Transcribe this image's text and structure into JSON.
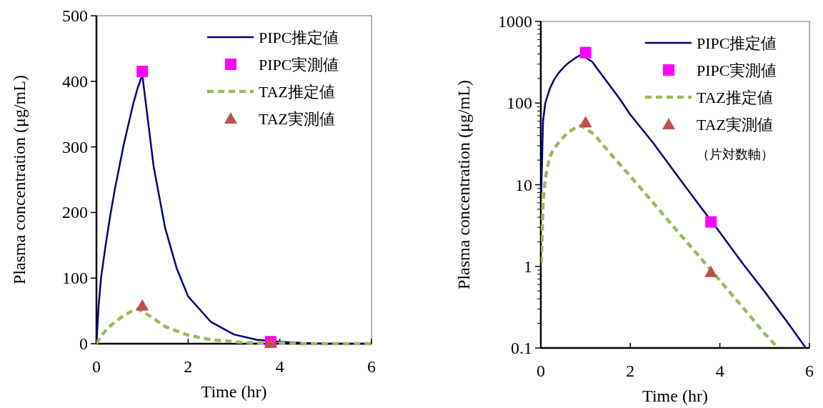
{
  "chart_data": [
    {
      "type": "line",
      "xlabel": "Time (hr)",
      "ylabel": "Plasma concentration (μg/mL)",
      "xlim": [
        0,
        6
      ],
      "ylim": [
        0,
        500
      ],
      "xticks": [
        0,
        2,
        4,
        6
      ],
      "yticks": [
        0,
        100,
        200,
        300,
        400,
        500
      ],
      "legend": "top right",
      "grid": false,
      "series": [
        {
          "name": "PIPC推定値",
          "type": "line",
          "color": "#000080",
          "line_style": "solid",
          "marker": "none",
          "x": [
            0,
            0.05,
            0.1,
            0.2,
            0.3,
            0.4,
            0.5,
            0.6,
            0.7,
            0.8,
            0.9,
            1.0,
            1.25,
            1.5,
            1.75,
            2,
            2.5,
            3,
            3.5,
            4,
            4.5,
            5,
            5.5,
            6
          ],
          "values": [
            0,
            60,
            100,
            150,
            195,
            235,
            270,
            305,
            335,
            365,
            390,
            410,
            269,
            176,
            115,
            72,
            33,
            14,
            6,
            3,
            1,
            0,
            0,
            0
          ]
        },
        {
          "name": "PIPC実測値",
          "type": "scatter",
          "color": "#ff00ff",
          "marker": "square",
          "x": [
            1,
            3.8
          ],
          "values": [
            415,
            3
          ]
        },
        {
          "name": "TAZ推定値",
          "type": "line",
          "color": "#9bbb59",
          "line_style": "dashed",
          "marker": "none",
          "x": [
            0,
            0.1,
            0.2,
            0.3,
            0.4,
            0.5,
            0.6,
            0.7,
            0.8,
            0.9,
            1.2,
            1.5,
            2,
            2.5,
            3,
            3.5,
            4,
            4.5,
            5,
            5.5,
            6
          ],
          "values": [
            0,
            12,
            20,
            27,
            33,
            38,
            43,
            47,
            51,
            53,
            41,
            26,
            13,
            6,
            3,
            1,
            1,
            0,
            0,
            0,
            0
          ]
        },
        {
          "name": "TAZ実測値",
          "type": "scatter",
          "color": "#c0504d",
          "marker": "triangle",
          "x": [
            1,
            3.8
          ],
          "values": [
            58,
            1
          ]
        }
      ]
    },
    {
      "type": "line",
      "xlabel": "Time (hr)",
      "ylabel": "Plasma concentration (μg/mL)",
      "xlim": [
        0,
        6
      ],
      "ylim": [
        0.1,
        1000
      ],
      "log": "y",
      "xticks": [
        0,
        2,
        4,
        6
      ],
      "yticks": [
        0.1,
        1,
        10,
        100,
        1000
      ],
      "legend": "top right",
      "grid": false,
      "annotations": [
        "（片対数軸）"
      ],
      "series": [
        {
          "name": "PIPC推定値",
          "type": "line",
          "color": "#000080",
          "line_style": "solid",
          "marker": "none",
          "x": [
            0.01,
            0.05,
            0.1,
            0.2,
            0.3,
            0.4,
            0.5,
            0.6,
            0.7,
            0.8,
            0.9,
            1.15,
            1.25,
            1.5,
            1.75,
            2,
            2.5,
            3,
            3.5,
            4,
            4.5,
            5,
            5.5,
            5.92
          ],
          "values": [
            8,
            60,
            100,
            150,
            195,
            235,
            270,
            305,
            335,
            365,
            390,
            320,
            269,
            176,
            115,
            72,
            33,
            14,
            6,
            2.6,
            1.1,
            0.49,
            0.21,
            0.1
          ]
        },
        {
          "name": "PIPC実測値",
          "type": "scatter",
          "color": "#ff00ff",
          "marker": "square",
          "x": [
            1,
            3.8
          ],
          "values": [
            415,
            3.5
          ]
        },
        {
          "name": "TAZ推定値",
          "type": "line",
          "color": "#9bbb59",
          "line_style": "dashed",
          "marker": "none",
          "x": [
            0.01,
            0.05,
            0.1,
            0.2,
            0.3,
            0.4,
            0.5,
            0.6,
            0.7,
            0.8,
            0.9,
            1.2,
            1.5,
            2,
            2.5,
            3,
            3.5,
            4,
            4.5,
            5,
            5.3
          ],
          "values": [
            1.1,
            6,
            12,
            22,
            28,
            33,
            38,
            43,
            47,
            51,
            53,
            41,
            26,
            12.7,
            6.1,
            2.9,
            1.4,
            0.67,
            0.32,
            0.15,
            0.1
          ]
        },
        {
          "name": "TAZ実測値",
          "type": "scatter",
          "color": "#c0504d",
          "marker": "triangle",
          "x": [
            1,
            3.8
          ],
          "values": [
            58,
            0.85
          ]
        }
      ]
    }
  ]
}
